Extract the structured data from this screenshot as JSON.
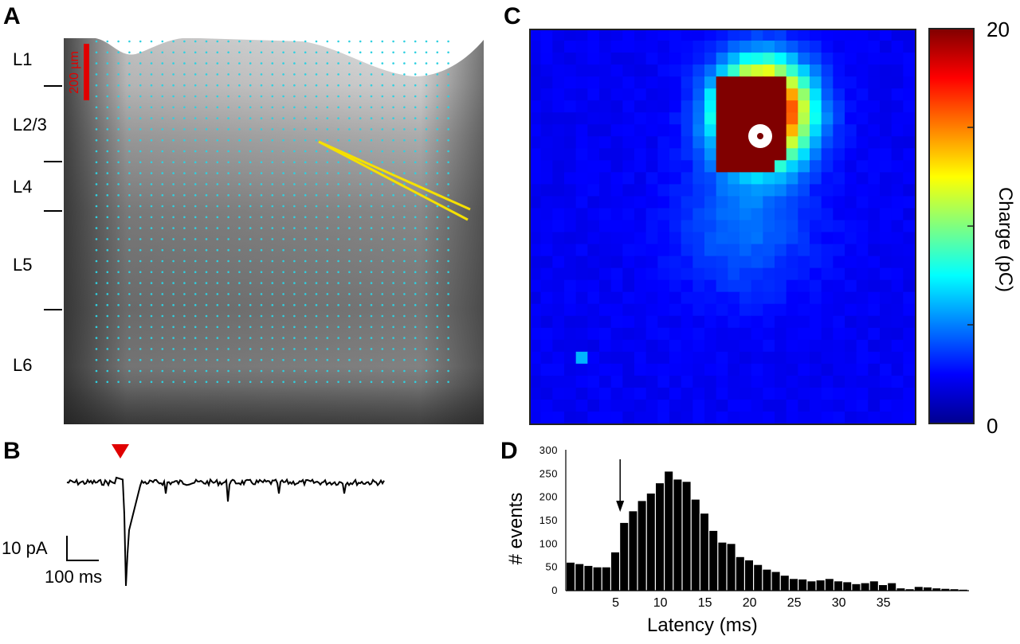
{
  "panels": {
    "a": "A",
    "b": "B",
    "c": "C",
    "d": "D"
  },
  "panel_a": {
    "layers": [
      "L1",
      "L2/3",
      "L4",
      "L5",
      "L6"
    ],
    "scalebar_label": "200 µm",
    "colors": {
      "grid_dots": "#2fd0e0",
      "scalebar": "#e00000",
      "pipette": "#f5e000"
    }
  },
  "panel_b": {
    "scale_y_label": "10 pA",
    "scale_x_label": "100 ms",
    "colors": {
      "stimulus_marker": "#e00000",
      "trace": "#000000"
    }
  },
  "panel_c": {
    "colorbar_label": "Charge (pC)",
    "colorbar_max": "20",
    "colorbar_min": "0",
    "colormap": "jet",
    "marker": "recorded cell (white circle)"
  },
  "chart_data": {
    "type": "bar",
    "xlabel": "Latency (ms)",
    "ylabel": "# events",
    "xticks": [
      5,
      10,
      15,
      20,
      25,
      30,
      35
    ],
    "yticks": [
      0,
      50,
      100,
      150,
      200,
      250,
      300
    ],
    "ylim": [
      0,
      300
    ],
    "xlim": [
      0,
      45
    ],
    "bin_start": 0,
    "bin_width": 1,
    "values": [
      60,
      57,
      53,
      50,
      50,
      82,
      145,
      170,
      192,
      208,
      230,
      255,
      238,
      233,
      195,
      165,
      128,
      103,
      100,
      72,
      65,
      55,
      45,
      40,
      32,
      25,
      24,
      20,
      22,
      25,
      20,
      18,
      14,
      16,
      20,
      12,
      16,
      5,
      3,
      8,
      7,
      5,
      4,
      3,
      2
    ],
    "annotation": "arrow at 6 ms",
    "annotation_x": 6
  }
}
